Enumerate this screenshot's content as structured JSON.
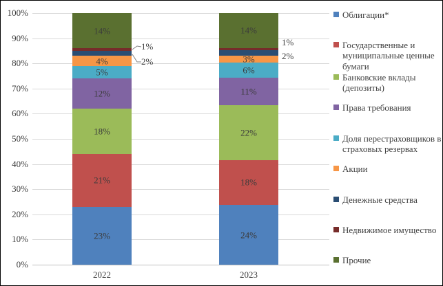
{
  "chart_data": {
    "type": "bar",
    "stacked": true,
    "percent_stacked": true,
    "title": "",
    "xlabel": "",
    "ylabel": "",
    "categories": [
      "2022",
      "2023"
    ],
    "series": [
      {
        "name": "Облигации*",
        "color": "#4f81bd",
        "values": [
          23,
          24
        ],
        "label_position": "inside"
      },
      {
        "name": "Государственные и муниципальные ценные бумаги",
        "color": "#c0504d",
        "values": [
          21,
          18
        ],
        "label_position": "inside"
      },
      {
        "name": "Банковские вклады (депозиты)",
        "color": "#9bbb59",
        "values": [
          18,
          22
        ],
        "label_position": "inside"
      },
      {
        "name": "Права требования",
        "color": "#8064a2",
        "values": [
          12,
          11
        ],
        "label_position": "inside"
      },
      {
        "name": "Доля перестраховщиков в страховых резервах",
        "color": "#4bacc6",
        "values": [
          5,
          6
        ],
        "label_position": "inside"
      },
      {
        "name": "Акции",
        "color": "#f79646",
        "values": [
          4,
          3
        ],
        "label_position": "inside"
      },
      {
        "name": "Денежные средства",
        "color": "#2a4d73",
        "values": [
          2,
          2
        ],
        "label_position": "callout"
      },
      {
        "name": "Недвижимое имущество",
        "color": "#772c2a",
        "values": [
          1,
          1
        ],
        "label_position": "callout"
      },
      {
        "name": "Прочие",
        "color": "#5a7030",
        "values": [
          14,
          14
        ],
        "label_position": "inside"
      }
    ],
    "yticks": [
      "0%",
      "10%",
      "20%",
      "30%",
      "40%",
      "50%",
      "60%",
      "70%",
      "80%",
      "90%",
      "100%"
    ],
    "ylim": [
      0,
      100
    ],
    "grid": true,
    "legend_position": "right",
    "callouts": [
      {
        "category": "2022",
        "series": "Недвижимое имущество",
        "label": "1%",
        "leader_line": true
      },
      {
        "category": "2022",
        "series": "Денежные средства",
        "label": "2%",
        "leader_line": true
      },
      {
        "category": "2023",
        "series": "Недвижимое имущество",
        "label": "1%",
        "leader_line": false
      },
      {
        "category": "2023",
        "series": "Денежные средства",
        "label": "2%",
        "leader_line": false
      }
    ]
  }
}
